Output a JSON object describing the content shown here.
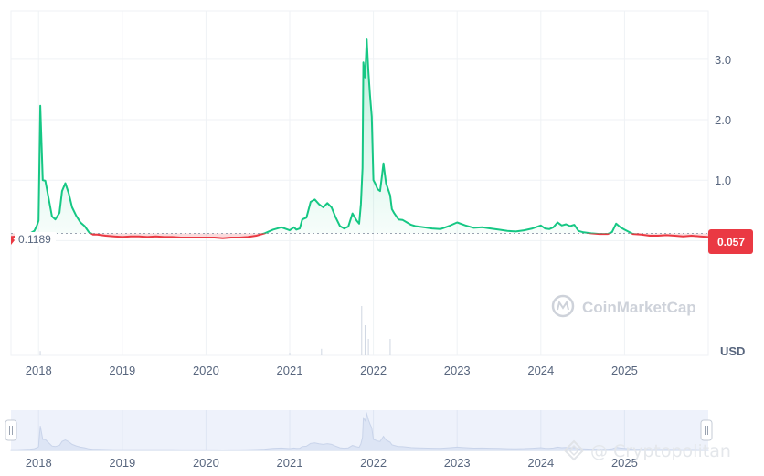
{
  "colors": {
    "above": "#16c784",
    "below": "#ea3943",
    "grid": "#eff2f5",
    "axis_text": "#58667e",
    "navigator_fill": "#eef2fb",
    "navigator_line": "#c9d4ea",
    "badge": "#ea3943"
  },
  "brand": {
    "name": "CoinMarketCap",
    "icon": "coinmarketcap-logo-icon"
  },
  "watermark": {
    "text": "@ Cryptopolitan",
    "icon": "cryptopolitan-logo-icon"
  },
  "reference": {
    "label": "0.1189",
    "value": 0.1189
  },
  "current": {
    "label": "0.057",
    "value": 0.057
  },
  "chart_data": {
    "type": "area",
    "ylabel": "USD",
    "ylim": [
      -1.9,
      3.8
    ],
    "yticks": [
      1.0,
      2.0,
      3.0
    ],
    "ytick_labels": [
      "1.0",
      "2.0",
      "3.0"
    ],
    "xlim": [
      2017.67,
      2026.0
    ],
    "xticks": [
      2018,
      2019,
      2020,
      2021,
      2022,
      2023,
      2024,
      2025
    ],
    "xtick_labels": [
      "2018",
      "2019",
      "2020",
      "2021",
      "2022",
      "2023",
      "2024",
      "2025"
    ],
    "grid": true,
    "legend": "none",
    "series": [
      {
        "x": [
          2017.67,
          2017.75,
          2017.9,
          2017.95,
          2017.98,
          2018.0,
          2018.02,
          2018.05,
          2018.08,
          2018.12,
          2018.16,
          2018.2,
          2018.25,
          2018.28,
          2018.32,
          2018.36,
          2018.4,
          2018.45,
          2018.5,
          2018.55,
          2018.6,
          2018.65,
          2018.7,
          2018.8,
          2018.9,
          2019.0,
          2019.1,
          2019.2,
          2019.3,
          2019.4,
          2019.5,
          2019.6,
          2019.7,
          2019.8,
          2019.9,
          2020.0,
          2020.1,
          2020.2,
          2020.3,
          2020.4,
          2020.5,
          2020.6,
          2020.7,
          2020.8,
          2020.9,
          2021.0,
          2021.05,
          2021.08,
          2021.12,
          2021.15,
          2021.2,
          2021.25,
          2021.3,
          2021.35,
          2021.4,
          2021.45,
          2021.5,
          2021.55,
          2021.6,
          2021.65,
          2021.7,
          2021.75,
          2021.8,
          2021.83,
          2021.85,
          2021.87,
          2021.88,
          2021.9,
          2021.92,
          2021.94,
          2021.96,
          2021.98,
          2022.0,
          2022.02,
          2022.05,
          2022.08,
          2022.1,
          2022.12,
          2022.15,
          2022.2,
          2022.22,
          2022.25,
          2022.3,
          2022.35,
          2022.4,
          2022.45,
          2022.5,
          2022.6,
          2022.7,
          2022.8,
          2022.9,
          2023.0,
          2023.1,
          2023.2,
          2023.3,
          2023.4,
          2023.5,
          2023.6,
          2023.7,
          2023.8,
          2023.9,
          2024.0,
          2024.05,
          2024.1,
          2024.15,
          2024.2,
          2024.25,
          2024.3,
          2024.35,
          2024.4,
          2024.45,
          2024.5,
          2024.6,
          2024.7,
          2024.8,
          2024.85,
          2024.9,
          2024.95,
          2025.0,
          2025.1,
          2025.2,
          2025.3,
          2025.4,
          2025.5,
          2025.6,
          2025.7,
          2025.8,
          2025.9,
          2026.0
        ],
        "values": [
          0.06,
          0.07,
          0.12,
          0.16,
          0.25,
          0.33,
          2.23,
          1.0,
          0.99,
          0.7,
          0.4,
          0.35,
          0.46,
          0.82,
          0.95,
          0.78,
          0.55,
          0.41,
          0.3,
          0.24,
          0.14,
          0.1,
          0.1,
          0.08,
          0.07,
          0.06,
          0.07,
          0.07,
          0.06,
          0.07,
          0.06,
          0.06,
          0.05,
          0.05,
          0.05,
          0.05,
          0.05,
          0.04,
          0.05,
          0.05,
          0.06,
          0.08,
          0.12,
          0.18,
          0.22,
          0.17,
          0.22,
          0.18,
          0.2,
          0.35,
          0.38,
          0.64,
          0.68,
          0.6,
          0.55,
          0.62,
          0.55,
          0.38,
          0.24,
          0.2,
          0.23,
          0.45,
          0.33,
          0.28,
          0.6,
          1.2,
          2.95,
          2.7,
          3.33,
          2.8,
          2.4,
          2.05,
          1.0,
          0.95,
          0.85,
          0.82,
          1.05,
          1.28,
          0.95,
          0.75,
          0.52,
          0.45,
          0.35,
          0.34,
          0.3,
          0.26,
          0.24,
          0.22,
          0.2,
          0.19,
          0.24,
          0.3,
          0.25,
          0.21,
          0.22,
          0.2,
          0.18,
          0.16,
          0.15,
          0.17,
          0.2,
          0.25,
          0.2,
          0.19,
          0.22,
          0.3,
          0.25,
          0.27,
          0.24,
          0.26,
          0.16,
          0.14,
          0.12,
          0.11,
          0.11,
          0.14,
          0.28,
          0.22,
          0.18,
          0.11,
          0.1,
          0.08,
          0.08,
          0.09,
          0.08,
          0.07,
          0.08,
          0.07,
          0.06
        ]
      }
    ]
  },
  "navigator": {
    "xtick_labels": [
      "2018",
      "2019",
      "2020",
      "2021",
      "2022",
      "2023",
      "2024",
      "2025"
    ],
    "left_handle_icon": "grip-handle-icon",
    "right_handle_icon": "grip-handle-icon"
  }
}
